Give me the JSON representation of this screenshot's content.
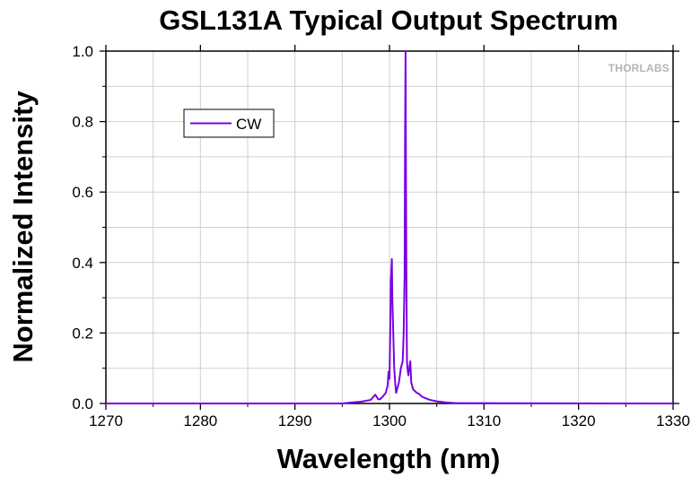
{
  "chart_data": {
    "type": "line",
    "title": "GSL131A Typical Output Spectrum",
    "xlabel": "Wavelength (nm)",
    "ylabel": "Normalized Intensity",
    "xlim": [
      1270,
      1330
    ],
    "ylim": [
      0,
      1.0
    ],
    "x_ticks": [
      "1270",
      "1280",
      "1290",
      "1300",
      "1310",
      "1320",
      "1330"
    ],
    "y_ticks": [
      "0.0",
      "0.2",
      "0.4",
      "0.6",
      "0.8",
      "1.0"
    ],
    "grid": true,
    "legend_position": "top-left",
    "logo": "THORLABS",
    "series": [
      {
        "name": "CW",
        "color": "#7a00e6",
        "x": [
          1270,
          1295.0,
          1296.0,
          1297.0,
          1298.0,
          1298.5,
          1298.8,
          1299.0,
          1299.3,
          1299.6,
          1299.8,
          1299.9,
          1300.0,
          1300.1,
          1300.15,
          1300.25,
          1300.3,
          1300.4,
          1300.5,
          1300.6,
          1300.7,
          1300.8,
          1300.9,
          1301.0,
          1301.1,
          1301.2,
          1301.3,
          1301.4,
          1301.5,
          1301.6,
          1301.65,
          1301.7,
          1301.75,
          1301.8,
          1301.85,
          1301.9,
          1302.0,
          1302.1,
          1302.2,
          1302.3,
          1302.4,
          1302.5,
          1302.7,
          1302.9,
          1303.1,
          1303.4,
          1303.8,
          1304.3,
          1305.0,
          1306.0,
          1307.0,
          1330
        ],
        "y": [
          0.0,
          0.0,
          0.003,
          0.005,
          0.01,
          0.025,
          0.012,
          0.012,
          0.02,
          0.03,
          0.05,
          0.09,
          0.07,
          0.24,
          0.35,
          0.41,
          0.3,
          0.2,
          0.1,
          0.06,
          0.03,
          0.04,
          0.05,
          0.06,
          0.08,
          0.1,
          0.11,
          0.12,
          0.2,
          0.36,
          0.76,
          1.0,
          0.6,
          0.3,
          0.12,
          0.1,
          0.08,
          0.1,
          0.12,
          0.06,
          0.05,
          0.04,
          0.035,
          0.03,
          0.028,
          0.02,
          0.015,
          0.01,
          0.006,
          0.003,
          0.001,
          0.0
        ]
      }
    ]
  }
}
